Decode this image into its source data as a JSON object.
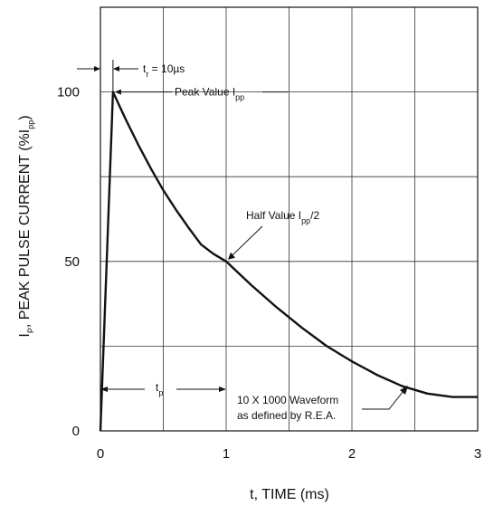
{
  "chart_data": {
    "type": "line",
    "xlabel": "t, TIME (ms)",
    "ylabel_parts": [
      "I",
      "P",
      ", PEAK PULSE CURRENT (%I",
      "pp",
      ")"
    ],
    "xlim": [
      0,
      3
    ],
    "ylim": [
      0,
      125
    ],
    "xticks": [
      0,
      1,
      2,
      3
    ],
    "xtick_labels": [
      "0",
      "1",
      "2",
      "3"
    ],
    "yticks": [
      0,
      50,
      100
    ],
    "ytick_labels": [
      "0",
      "50",
      "100"
    ],
    "grid": true,
    "series": [
      {
        "x": [
          0,
          0.1,
          0.2,
          0.3,
          0.4,
          0.5,
          0.6,
          0.7,
          0.8,
          0.9,
          1.0,
          1.2,
          1.4,
          1.6,
          1.8,
          2.0,
          2.2,
          2.4,
          2.6,
          2.8,
          3.0
        ],
        "y": [
          0,
          100,
          92,
          84.5,
          77.5,
          71,
          65.3,
          60,
          55,
          52.2,
          50,
          43,
          36.5,
          30.5,
          25,
          20.5,
          16.5,
          13.2,
          11,
          10,
          10
        ]
      }
    ],
    "annotations": {
      "rise_time": {
        "t": "t",
        "sub": "r",
        "rest": " = 10µs"
      },
      "peak": {
        "main": "Peak Value I",
        "sub": "pp"
      },
      "half": {
        "main": "Half Value I",
        "sub": "pp",
        "rest": "/2"
      },
      "tp": {
        "t": "t",
        "sub": "p"
      },
      "waveform": [
        "10 X 1000 Waveform",
        "as defined by R.E.A."
      ]
    }
  }
}
